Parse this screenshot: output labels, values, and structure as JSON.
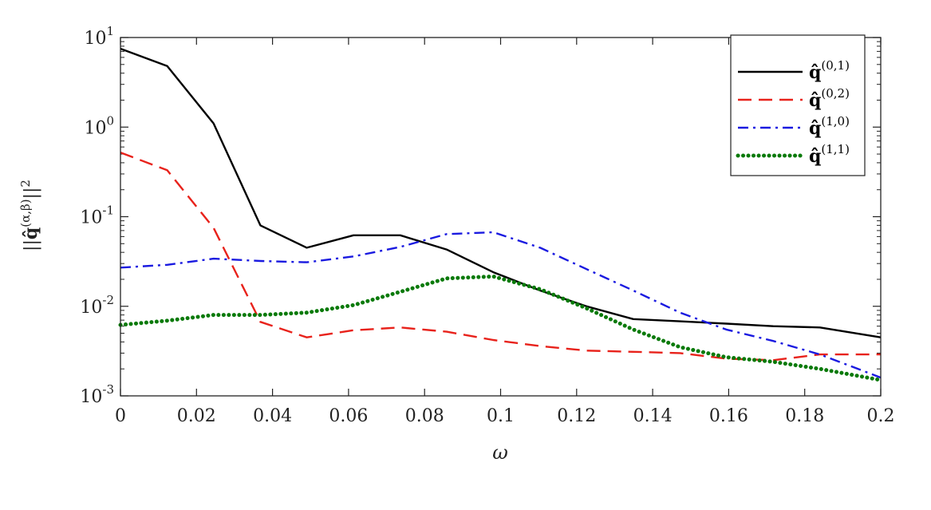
{
  "chart_data": {
    "type": "line",
    "title": "",
    "xlabel": "ω",
    "ylabel": "||q̂^(α,β)||²",
    "xlim": [
      0,
      0.2
    ],
    "ylim": [
      0.001,
      10
    ],
    "yscale": "log",
    "grid": false,
    "legend_position": "top-right",
    "xticks": [
      0,
      0.02,
      0.04,
      0.06,
      0.08,
      0.1,
      0.12,
      0.14,
      0.16,
      0.18,
      0.2
    ],
    "xtick_labels": [
      "0",
      "0.02",
      "0.04",
      "0.06",
      "0.08",
      "0.1",
      "0.12",
      "0.14",
      "0.16",
      "0.18",
      "0.2"
    ],
    "yticks": [
      {
        "value": 10,
        "base": "10",
        "exp": "1"
      },
      {
        "value": 1,
        "base": "10",
        "exp": "0"
      },
      {
        "value": 0.1,
        "base": "10",
        "exp": "-1"
      },
      {
        "value": 0.01,
        "base": "10",
        "exp": "-2"
      },
      {
        "value": 0.001,
        "base": "10",
        "exp": "-3"
      }
    ],
    "series": [
      {
        "name": "q̂^(0,1)",
        "legend_sup": "(0,1)",
        "color": "#000000",
        "style": "solid",
        "x": [
          0,
          0.0123,
          0.0245,
          0.0368,
          0.049,
          0.0613,
          0.0736,
          0.0858,
          0.0981,
          0.1104,
          0.1226,
          0.1349,
          0.1472,
          0.1594,
          0.1717,
          0.184,
          0.2
        ],
        "y": [
          7.5,
          4.8,
          1.1,
          0.08,
          0.045,
          0.062,
          0.062,
          0.043,
          0.024,
          0.015,
          0.01,
          0.0072,
          0.0068,
          0.0064,
          0.006,
          0.0058,
          0.0045
        ]
      },
      {
        "name": "q̂^(0,2)",
        "legend_sup": "(0,2)",
        "color": "#e8221b",
        "style": "dashed",
        "x": [
          0,
          0.0123,
          0.0245,
          0.0368,
          0.049,
          0.0613,
          0.0736,
          0.0858,
          0.0981,
          0.1104,
          0.1226,
          0.1349,
          0.1472,
          0.1594,
          0.1717,
          0.184,
          0.2
        ],
        "y": [
          0.52,
          0.33,
          0.075,
          0.0067,
          0.0045,
          0.0054,
          0.0058,
          0.0052,
          0.0042,
          0.0036,
          0.0032,
          0.0031,
          0.003,
          0.0026,
          0.0025,
          0.0029,
          0.0029
        ]
      },
      {
        "name": "q̂^(1,0)",
        "legend_sup": "(1,0)",
        "color": "#1a1ae0",
        "style": "dashdot",
        "x": [
          0,
          0.0123,
          0.0245,
          0.0368,
          0.049,
          0.0613,
          0.0736,
          0.0858,
          0.0981,
          0.1104,
          0.1226,
          0.1349,
          0.1472,
          0.1594,
          0.1717,
          0.184,
          0.2
        ],
        "y": [
          0.027,
          0.029,
          0.034,
          0.032,
          0.031,
          0.036,
          0.046,
          0.064,
          0.067,
          0.045,
          0.026,
          0.015,
          0.0085,
          0.0055,
          0.0041,
          0.0029,
          0.0016
        ]
      },
      {
        "name": "q̂^(1,1)",
        "legend_sup": "(1,1)",
        "color": "#0a7a0a",
        "style": "dotted",
        "x": [
          0,
          0.0123,
          0.0245,
          0.0368,
          0.049,
          0.0613,
          0.0736,
          0.0858,
          0.0981,
          0.1104,
          0.1226,
          0.1349,
          0.1472,
          0.1594,
          0.1717,
          0.184,
          0.2
        ],
        "y": [
          0.0062,
          0.0069,
          0.008,
          0.008,
          0.0085,
          0.0103,
          0.0145,
          0.0205,
          0.0215,
          0.0155,
          0.0095,
          0.0055,
          0.0035,
          0.0027,
          0.0024,
          0.002,
          0.0015
        ]
      }
    ]
  }
}
